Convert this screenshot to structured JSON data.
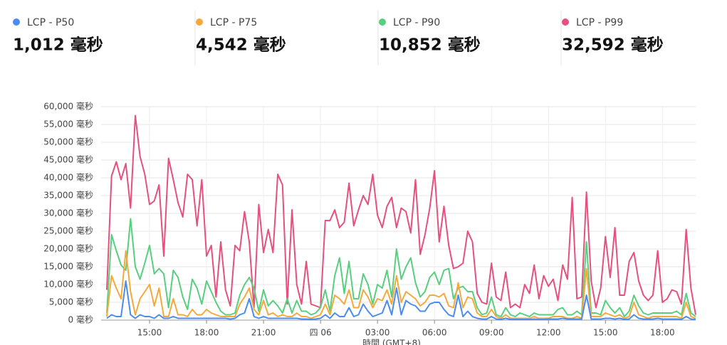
{
  "chart_data": {
    "type": "line",
    "x_label": "時間 (GMT+8)",
    "categories": [
      null,
      null,
      null,
      null,
      null,
      null,
      null,
      null,
      null,
      "15:00",
      null,
      null,
      null,
      null,
      null,
      null,
      null,
      null,
      null,
      null,
      null,
      "18:00",
      null,
      null,
      null,
      null,
      null,
      null,
      null,
      null,
      null,
      null,
      null,
      "21:00",
      null,
      null,
      null,
      null,
      null,
      null,
      null,
      null,
      null,
      null,
      null,
      "四 06",
      null,
      null,
      null,
      null,
      null,
      null,
      null,
      null,
      null,
      null,
      null,
      "03:00",
      null,
      null,
      null,
      null,
      null,
      null,
      null,
      null,
      null,
      null,
      null,
      "06:00",
      null,
      null,
      null,
      null,
      null,
      null,
      null,
      null,
      null,
      null,
      null,
      "09:00",
      null,
      null,
      null,
      null,
      null,
      null,
      null,
      null,
      null,
      null,
      null,
      "12:00",
      null,
      null,
      null,
      null,
      null,
      null,
      null,
      null,
      null,
      null,
      null,
      "15:00",
      null,
      null,
      null,
      null,
      null,
      null,
      null,
      null,
      null,
      null,
      null,
      "18:00",
      null,
      null,
      null,
      null,
      null,
      null,
      null
    ],
    "ylim": [
      0,
      60000
    ],
    "yticks": [
      {
        "value": 0,
        "label": "0 毫秒"
      },
      {
        "value": 5000,
        "label": "5,000 毫秒"
      },
      {
        "value": 10000,
        "label": "10,000 毫秒"
      },
      {
        "value": 15000,
        "label": "15,000 毫秒"
      },
      {
        "value": 20000,
        "label": "20,000 毫秒"
      },
      {
        "value": 25000,
        "label": "25,000 毫秒"
      },
      {
        "value": 30000,
        "label": "30,000 毫秒"
      },
      {
        "value": 35000,
        "label": "35,000 毫秒"
      },
      {
        "value": 40000,
        "label": "40,000 毫秒"
      },
      {
        "value": 45000,
        "label": "45,000 毫秒"
      },
      {
        "value": 50000,
        "label": "50,000 毫秒"
      },
      {
        "value": 55000,
        "label": "55,000 毫秒"
      },
      {
        "value": 60000,
        "label": "60,000 毫秒"
      }
    ],
    "grid": true,
    "series": [
      {
        "name": "LCP - P50",
        "summary": "1,012 毫秒",
        "color": "#4a8cf0",
        "values": [
          500,
          1500,
          1000,
          1000,
          11000,
          1500,
          500,
          1500,
          1000,
          1000,
          500,
          1500,
          500,
          500,
          1000,
          500,
          500,
          500,
          500,
          500,
          500,
          500,
          500,
          500,
          500,
          500,
          300,
          500,
          1500,
          2000,
          6000,
          1000,
          500,
          1000,
          500,
          500,
          500,
          500,
          500,
          500,
          500,
          300,
          300,
          200,
          300,
          500,
          1500,
          500,
          2000,
          1000,
          1000,
          3500,
          1000,
          1500,
          4500,
          2500,
          1000,
          1500,
          2000,
          5500,
          1500,
          9000,
          1500,
          5500,
          4500,
          4000,
          2500,
          2500,
          4500,
          5000,
          5000,
          3000,
          1500,
          1000,
          7000,
          1000,
          2500,
          1000,
          500,
          300,
          300,
          1000,
          300,
          200,
          500,
          200,
          200,
          200,
          200,
          200,
          300,
          200,
          200,
          300,
          300,
          300,
          500,
          300,
          300,
          300,
          300,
          7000,
          300,
          300,
          300,
          500,
          500,
          300,
          500,
          200,
          300,
          1500,
          500,
          300,
          300,
          300,
          500,
          300,
          300,
          300,
          300,
          200,
          1000,
          300,
          200
        ]
      },
      {
        "name": "LCP - P75",
        "summary": "4,542 毫秒",
        "color": "#f4a93c",
        "values": [
          1000,
          12500,
          9000,
          6000,
          19500,
          8000,
          1500,
          6000,
          8000,
          10000,
          4000,
          9000,
          1000,
          1000,
          6000,
          1500,
          1500,
          1000,
          3000,
          1500,
          1500,
          3000,
          2000,
          1500,
          1000,
          1000,
          1000,
          1000,
          4500,
          6500,
          9000,
          3000,
          1500,
          5500,
          1500,
          2000,
          1000,
          1500,
          1000,
          1000,
          2000,
          1000,
          1000,
          500,
          1000,
          1500,
          4500,
          1500,
          7000,
          6000,
          4500,
          8500,
          3500,
          3500,
          8500,
          6500,
          3500,
          6000,
          5500,
          8500,
          4500,
          12500,
          5000,
          8000,
          7000,
          6000,
          4000,
          5000,
          7000,
          7000,
          6500,
          7500,
          4000,
          3500,
          10500,
          3500,
          6500,
          6000,
          2000,
          1000,
          1000,
          3000,
          1000,
          500,
          1500,
          500,
          500,
          500,
          500,
          500,
          1000,
          500,
          500,
          500,
          1000,
          1000,
          1000,
          500,
          500,
          1000,
          500,
          14500,
          1000,
          1000,
          1000,
          2000,
          1500,
          1000,
          1500,
          500,
          1000,
          5000,
          1500,
          1000,
          500,
          1000,
          1000,
          1000,
          1000,
          1000,
          1000,
          500,
          5000,
          1000,
          500
        ]
      },
      {
        "name": "LCP - P90",
        "summary": "10,852 毫秒",
        "color": "#57cf7f",
        "values": [
          2000,
          24000,
          19500,
          15500,
          14000,
          28500,
          15000,
          11500,
          16000,
          21000,
          13000,
          14500,
          13000,
          3500,
          14000,
          12000,
          6500,
          3000,
          11500,
          9000,
          4500,
          11000,
          8000,
          5000,
          2500,
          1500,
          1500,
          2000,
          7000,
          10000,
          12000,
          9000,
          2500,
          8500,
          4000,
          5500,
          4000,
          2000,
          6000,
          2000,
          5500,
          2500,
          2500,
          1500,
          2000,
          3500,
          8500,
          2500,
          12500,
          17500,
          7500,
          16500,
          6000,
          6000,
          13000,
          10000,
          4500,
          10000,
          9000,
          14000,
          6500,
          20000,
          11500,
          15000,
          17500,
          10500,
          6500,
          8000,
          12000,
          13500,
          10000,
          14000,
          14500,
          6000,
          9000,
          9500,
          8000,
          8000,
          3500,
          1500,
          2000,
          6500,
          1500,
          1000,
          3500,
          1500,
          1000,
          2000,
          1500,
          1000,
          2000,
          1500,
          1500,
          1500,
          1500,
          3000,
          3500,
          1500,
          1500,
          2500,
          1500,
          22000,
          2000,
          2000,
          1500,
          5500,
          3500,
          2000,
          3500,
          1000,
          2500,
          7000,
          4000,
          2000,
          1500,
          2000,
          2000,
          2000,
          2000,
          2000,
          2500,
          1500,
          7500,
          2000,
          1000
        ]
      },
      {
        "name": "LCP - P99",
        "summary": "32,592 毫秒",
        "color": "#e5507f",
        "values": [
          8500,
          40500,
          44500,
          39500,
          44000,
          31500,
          57500,
          46000,
          41000,
          32500,
          33500,
          38000,
          18000,
          45500,
          39500,
          33000,
          29000,
          41000,
          39500,
          26500,
          39500,
          18000,
          21000,
          6500,
          22000,
          8500,
          4000,
          21000,
          19500,
          30500,
          22000,
          3500,
          32500,
          19000,
          25500,
          19000,
          41000,
          38000,
          4500,
          31000,
          10000,
          4500,
          16500,
          4500,
          4000,
          3500,
          28000,
          28000,
          31000,
          26000,
          27500,
          38500,
          26500,
          31000,
          35000,
          32500,
          41000,
          29500,
          26000,
          32000,
          34500,
          26000,
          31500,
          30500,
          24500,
          39500,
          18500,
          24000,
          31500,
          42000,
          22000,
          32000,
          21000,
          14500,
          15000,
          16000,
          25000,
          22000,
          7500,
          5000,
          4500,
          16000,
          6500,
          5500,
          13500,
          3500,
          4500,
          3500,
          10000,
          7500,
          15500,
          6000,
          12500,
          9500,
          11500,
          5500,
          15500,
          11500,
          34500,
          6000,
          6500,
          36000,
          11000,
          3500,
          9000,
          23500,
          12000,
          26000,
          7000,
          7000,
          16500,
          19000,
          11000,
          7000,
          5500,
          7000,
          19500,
          5000,
          6000,
          8500,
          8000,
          4500,
          25500,
          9000,
          1500
        ]
      }
    ]
  }
}
